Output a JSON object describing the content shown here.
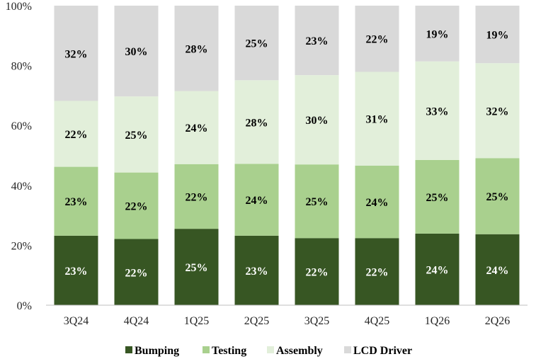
{
  "chart_data": {
    "type": "bar",
    "stacked": true,
    "categories": [
      "3Q24",
      "4Q24",
      "1Q25",
      "2Q25",
      "3Q25",
      "4Q25",
      "1Q26",
      "2Q26"
    ],
    "series": [
      {
        "name": "Bumping",
        "values": [
          23,
          22,
          25,
          23,
          22,
          22,
          24,
          24
        ],
        "color": "#375623",
        "label_color": "#ffffff"
      },
      {
        "name": "Testing",
        "values": [
          23,
          22,
          22,
          24,
          25,
          24,
          25,
          25
        ],
        "color": "#a9d08e",
        "label_color": "#000000"
      },
      {
        "name": "Assembly",
        "values": [
          22,
          25,
          24,
          28,
          30,
          31,
          33,
          32
        ],
        "color": "#e2efda",
        "label_color": "#000000"
      },
      {
        "name": "LCD Driver",
        "values": [
          32,
          30,
          28,
          25,
          23,
          22,
          19,
          19
        ],
        "color": "#d9d9d9",
        "label_color": "#000000"
      }
    ],
    "heights": [
      [
        23.2,
        22.1,
        25.5,
        23.2,
        22.4,
        22.4,
        23.9,
        23.7
      ],
      [
        23.0,
        22.2,
        21.6,
        24.0,
        24.6,
        24.2,
        24.6,
        25.4
      ],
      [
        22.0,
        25.4,
        24.4,
        27.9,
        29.8,
        31.3,
        32.9,
        31.7
      ],
      [
        31.8,
        30.3,
        28.5,
        24.9,
        23.2,
        22.1,
        18.6,
        19.2
      ]
    ],
    "value_suffix": "%",
    "ylim": [
      0,
      100
    ],
    "yticks": [
      0,
      20,
      40,
      60,
      80,
      100
    ],
    "ytick_labels": [
      "0%",
      "20%",
      "40%",
      "60%",
      "80%",
      "100%"
    ],
    "title": "",
    "xlabel": "",
    "ylabel": "",
    "legend_position": "bottom",
    "grid": false
  }
}
